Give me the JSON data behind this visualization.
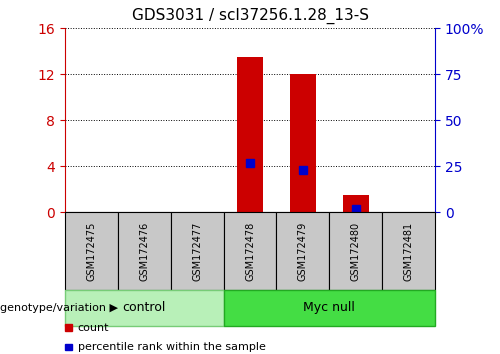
{
  "title": "GDS3031 / scl37256.1.28_13-S",
  "samples": [
    "GSM172475",
    "GSM172476",
    "GSM172477",
    "GSM172478",
    "GSM172479",
    "GSM172480",
    "GSM172481"
  ],
  "red_counts": [
    0,
    0,
    0,
    13.5,
    12.0,
    1.5,
    0
  ],
  "blue_percentiles_pct": [
    0,
    0,
    0,
    27,
    23,
    2,
    0
  ],
  "left_ylim": [
    0,
    16
  ],
  "left_yticks": [
    0,
    4,
    8,
    12,
    16
  ],
  "right_ylim": [
    0,
    100
  ],
  "right_yticks": [
    0,
    25,
    50,
    75,
    100
  ],
  "right_yticklabels": [
    "0",
    "25",
    "50",
    "75",
    "100%"
  ],
  "groups": [
    {
      "label": "control",
      "start": 0,
      "end": 3,
      "color": "#b8f0b8",
      "border": "#77cc77"
    },
    {
      "label": "Myc null",
      "start": 3,
      "end": 7,
      "color": "#44dd44",
      "border": "#22aa22"
    }
  ],
  "red_color": "#cc0000",
  "blue_color": "#0000cc",
  "left_axis_color": "#cc0000",
  "right_axis_color": "#0000cc",
  "bar_width": 0.5,
  "marker_size": 6,
  "grid_color": "black",
  "grid_style": "dotted",
  "tick_label_bg": "#c8c8c8",
  "legend_count_label": "count",
  "legend_pct_label": "percentile rank within the sample",
  "genotype_label": "genotype/variation",
  "title_fontsize": 11,
  "legend_fontsize": 8,
  "group_label_fontsize": 9,
  "sample_fontsize": 7
}
